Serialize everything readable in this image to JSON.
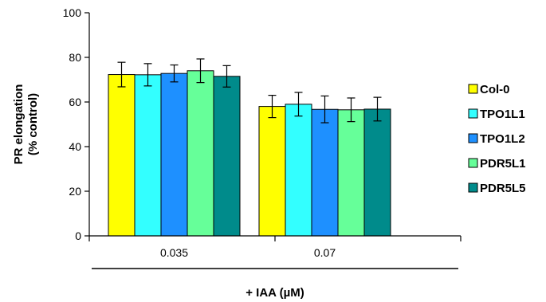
{
  "chart_data": {
    "type": "bar",
    "title": "",
    "xlabel": "+ IAA (µM)",
    "ylabel_lines": [
      "PR elongation",
      "(% control)"
    ],
    "ylim": [
      0,
      100
    ],
    "yticks": [
      "0",
      "20",
      "40",
      "60",
      "80",
      "100"
    ],
    "ytick_values": [
      0,
      20,
      40,
      60,
      80,
      100
    ],
    "categories": [
      "0.035",
      "0.07"
    ],
    "grid": false,
    "legend_position": "right",
    "series": [
      {
        "name": "Col-0",
        "color": "#ffff00",
        "values": [
          72.3,
          58.0
        ],
        "errors": [
          5.5,
          5.0
        ]
      },
      {
        "name": "TPO1L1",
        "color": "#33ffff",
        "values": [
          72.2,
          59.0
        ],
        "errors": [
          5.0,
          5.3
        ]
      },
      {
        "name": "TPO1L2",
        "color": "#1e90ff",
        "values": [
          72.8,
          56.7
        ],
        "errors": [
          3.8,
          6.0
        ]
      },
      {
        "name": "PDR5L1",
        "color": "#66ff99",
        "values": [
          74.0,
          56.5
        ],
        "errors": [
          5.3,
          5.3
        ]
      },
      {
        "name": "PDR5L5",
        "color": "#008b8b",
        "values": [
          71.5,
          56.8
        ],
        "errors": [
          4.8,
          5.3
        ]
      }
    ]
  }
}
